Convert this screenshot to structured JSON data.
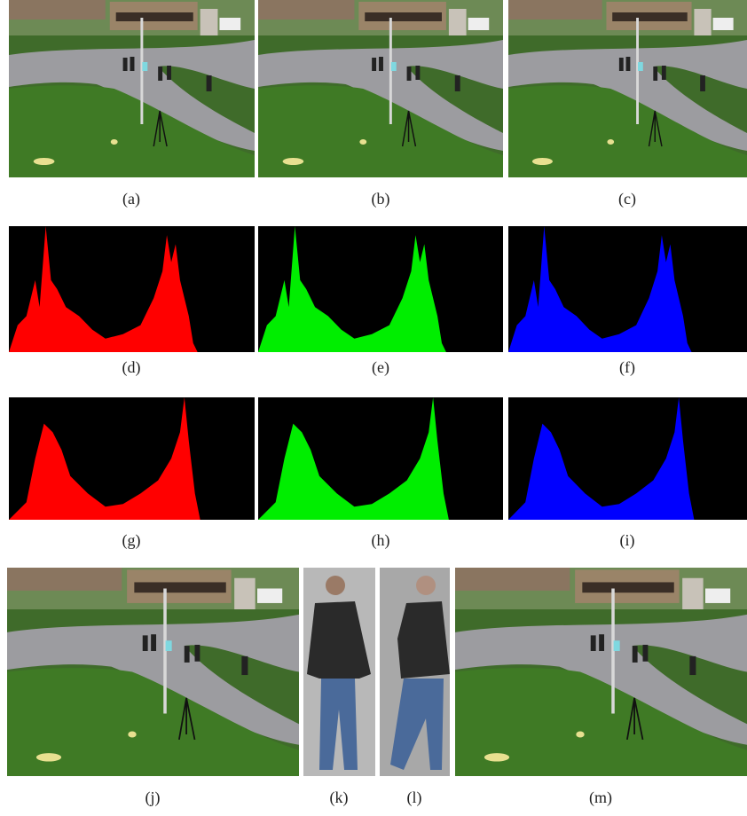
{
  "figure": {
    "labels": [
      "(a)",
      "(b)",
      "(c)",
      "(d)",
      "(e)",
      "(f)",
      "(g)",
      "(h)",
      "(i)",
      "(j)",
      "(k)",
      "(l)",
      "(m)"
    ]
  }
}
